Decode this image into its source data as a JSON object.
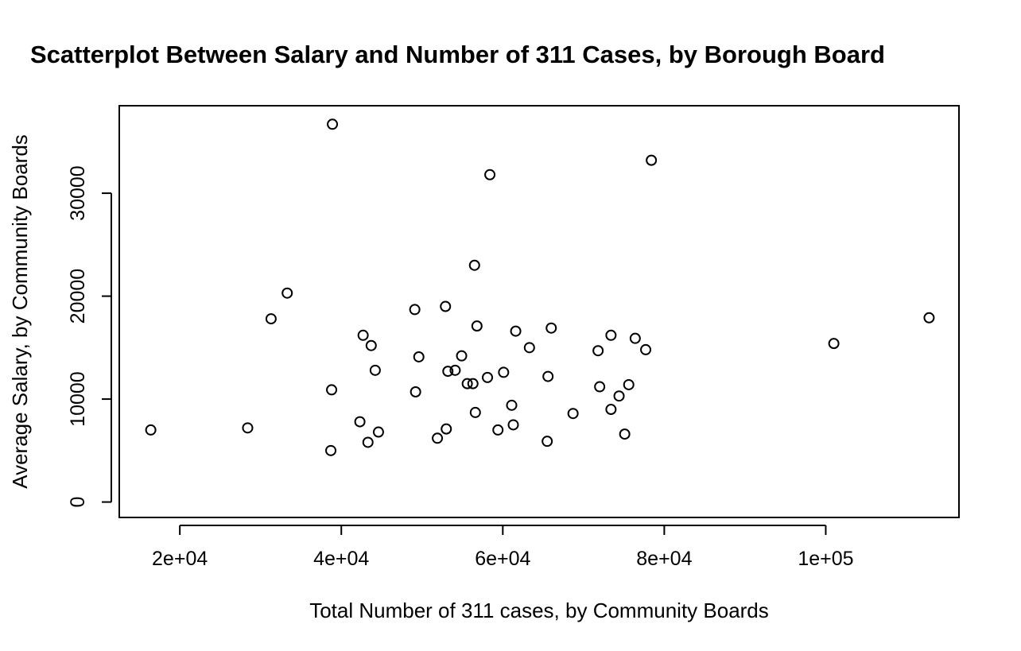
{
  "chart_data": {
    "type": "scatter",
    "title": "Scatterplot Between Salary and Number of 311 Cases, by Borough Board",
    "xlabel": "Total Number of 311 cases, by Community Boards",
    "ylabel": "Average Salary, by Community Boards",
    "xlim": [
      12500,
      116500
    ],
    "ylim": [
      -1500,
      38500
    ],
    "x_ticks": [
      20000,
      40000,
      60000,
      80000,
      100000
    ],
    "x_tick_labels": [
      "2e+04",
      "4e+04",
      "6e+04",
      "8e+04",
      "1e+05"
    ],
    "y_ticks": [
      0,
      10000,
      20000,
      30000
    ],
    "y_tick_labels": [
      "0",
      "10000",
      "20000",
      "30000"
    ],
    "grid": false,
    "legend": "none",
    "marker": "open-circle",
    "colors": {
      "marker": "#000000",
      "axis": "#000000",
      "background": "#ffffff"
    },
    "series": [
      {
        "points": [
          [
            16400,
            7000
          ],
          [
            28400,
            7200
          ],
          [
            31300,
            17800
          ],
          [
            33300,
            20300
          ],
          [
            38700,
            5000
          ],
          [
            38800,
            10900
          ],
          [
            38900,
            36700
          ],
          [
            42300,
            7800
          ],
          [
            42700,
            16200
          ],
          [
            43300,
            5800
          ],
          [
            43700,
            15200
          ],
          [
            44200,
            12800
          ],
          [
            44600,
            6800
          ],
          [
            49100,
            18700
          ],
          [
            49200,
            10700
          ],
          [
            49600,
            14100
          ],
          [
            51900,
            6200
          ],
          [
            52900,
            19000
          ],
          [
            53000,
            7100
          ],
          [
            53200,
            12700
          ],
          [
            54100,
            12800
          ],
          [
            54900,
            14200
          ],
          [
            55600,
            11500
          ],
          [
            56300,
            11500
          ],
          [
            56500,
            23000
          ],
          [
            56600,
            8700
          ],
          [
            56800,
            17100
          ],
          [
            58100,
            12100
          ],
          [
            58400,
            31800
          ],
          [
            59400,
            7000
          ],
          [
            60100,
            12600
          ],
          [
            61100,
            9400
          ],
          [
            61300,
            7500
          ],
          [
            61600,
            16600
          ],
          [
            63300,
            15000
          ],
          [
            65500,
            5900
          ],
          [
            65600,
            12200
          ],
          [
            66000,
            16900
          ],
          [
            68700,
            8600
          ],
          [
            71800,
            14700
          ],
          [
            72000,
            11200
          ],
          [
            73400,
            16200
          ],
          [
            73400,
            9000
          ],
          [
            74400,
            10300
          ],
          [
            75100,
            6600
          ],
          [
            75600,
            11400
          ],
          [
            76400,
            15900
          ],
          [
            77700,
            14800
          ],
          [
            78400,
            33200
          ],
          [
            101000,
            15400
          ],
          [
            112800,
            17900
          ]
        ]
      }
    ]
  }
}
